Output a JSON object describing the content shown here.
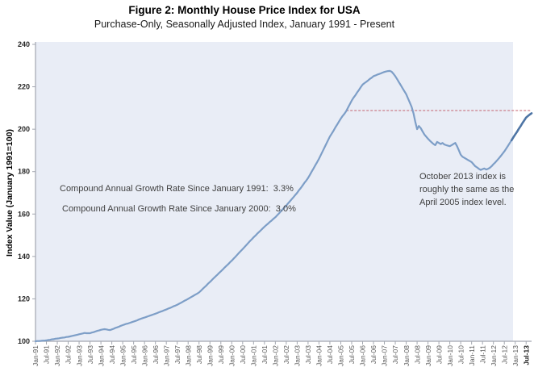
{
  "figure": {
    "title": "Figure 2: Monthly House Price Index for USA",
    "subtitle": "Purchase-Only, Seasonally Adjusted Index, January 1991 - Present"
  },
  "annotations": {
    "cagr_1991": "Compound Annual Growth Rate Since January 1991:  3.3%",
    "cagr_2000": "Compound Annual Growth Rate Since January 2000:  3.0%",
    "note_right": "October 2013 index is\nroughly the same as the\nApril 2005 index level."
  },
  "chart_data": {
    "type": "line",
    "title": "Figure 2: Monthly House Price Index for USA",
    "subtitle": "Purchase-Only, Seasonally Adjusted Index, January 1991 - Present",
    "xlabel": "",
    "ylabel": "Index Value (January 1991=100)",
    "ylim": [
      100,
      240
    ],
    "y_ticks": [
      100,
      120,
      140,
      160,
      180,
      200,
      220,
      240
    ],
    "grid": false,
    "legend": "none",
    "x_tick_labels": [
      "Jan-91",
      "Jul-91",
      "Jan-92",
      "Jul-92",
      "Jan-93",
      "Jul-93",
      "Jan-94",
      "Jul-94",
      "Jan-95",
      "Jul-95",
      "Jan-96",
      "Jul-96",
      "Jan-97",
      "Jul-97",
      "Jan-98",
      "Jul-98",
      "Jan-99",
      "Jul-99",
      "Jan-00",
      "Jul-00",
      "Jan-01",
      "Jul-01",
      "Jan-02",
      "Jul-02",
      "Jan-03",
      "Jul-03",
      "Jan-04",
      "Jul-04",
      "Jan-05",
      "Jul-05",
      "Jan-06",
      "Jul-06",
      "Jan-07",
      "Jul-07",
      "Jan-08",
      "Jul-08",
      "Jan-09",
      "Jul-09",
      "Jan-10",
      "Jul-10",
      "Jan-11",
      "Jul-11",
      "Jan-12",
      "Jul-12",
      "Jan-13",
      "Jul-13"
    ],
    "reference_line": {
      "value": 208.8,
      "style": "dashed",
      "starts_at": "Apr-2005",
      "start_index": 171
    },
    "recent_segment_start_index": 262,
    "series": [
      {
        "name": "Monthly House Price Index (Jan 1991 = 100)",
        "start": "Jan-1991",
        "end": "Oct-2013",
        "frequency": "monthly",
        "values": [
          100.0,
          100.1,
          100.1,
          100.2,
          100.3,
          100.3,
          100.4,
          100.6,
          100.7,
          100.9,
          101.0,
          101.2,
          101.3,
          101.4,
          101.6,
          101.7,
          101.8,
          102.0,
          102.1,
          102.3,
          102.5,
          102.7,
          102.9,
          103.1,
          103.3,
          103.5,
          103.7,
          103.9,
          103.8,
          103.8,
          103.8,
          104.1,
          104.3,
          104.6,
          104.9,
          105.1,
          105.4,
          105.6,
          105.7,
          105.6,
          105.4,
          105.3,
          105.6,
          105.9,
          106.3,
          106.6,
          106.9,
          107.3,
          107.6,
          107.9,
          108.2,
          108.4,
          108.7,
          109.0,
          109.3,
          109.6,
          109.9,
          110.3,
          110.6,
          110.9,
          111.2,
          111.5,
          111.8,
          112.1,
          112.4,
          112.7,
          113.0,
          113.3,
          113.7,
          114.0,
          114.3,
          114.7,
          115.0,
          115.4,
          115.7,
          116.1,
          116.5,
          116.8,
          117.2,
          117.7,
          118.1,
          118.6,
          119.1,
          119.5,
          120.0,
          120.5,
          121.0,
          121.5,
          122.0,
          122.5,
          123.0,
          123.8,
          124.7,
          125.5,
          126.3,
          127.2,
          128.0,
          128.8,
          129.7,
          130.5,
          131.3,
          132.2,
          133.0,
          133.8,
          134.7,
          135.5,
          136.3,
          137.2,
          138.0,
          138.9,
          139.8,
          140.8,
          141.7,
          142.6,
          143.5,
          144.4,
          145.3,
          146.3,
          147.2,
          148.1,
          149.0,
          149.8,
          150.7,
          151.5,
          152.3,
          153.2,
          154.0,
          154.8,
          155.5,
          156.3,
          157.0,
          157.8,
          158.5,
          159.4,
          160.3,
          161.3,
          162.2,
          163.1,
          164.0,
          165.0,
          166.0,
          167.0,
          168.0,
          169.0,
          170.0,
          171.2,
          172.3,
          173.5,
          174.7,
          175.8,
          177.0,
          178.5,
          180.0,
          181.5,
          183.0,
          184.5,
          186.0,
          187.8,
          189.5,
          191.3,
          193.0,
          194.8,
          196.5,
          197.9,
          199.3,
          200.8,
          202.2,
          203.6,
          205.0,
          206.2,
          207.3,
          208.5,
          210.2,
          211.8,
          213.5,
          214.8,
          216.0,
          217.3,
          218.5,
          219.8,
          221.0,
          221.7,
          222.3,
          223.0,
          223.7,
          224.3,
          225.0,
          225.3,
          225.7,
          226.0,
          226.3,
          226.7,
          227.0,
          227.2,
          227.4,
          227.5,
          227.1,
          226.1,
          225.0,
          223.6,
          222.2,
          220.8,
          219.3,
          217.9,
          216.5,
          214.5,
          212.5,
          210.5,
          207.5,
          203.5,
          200.0,
          201.5,
          200.5,
          199.0,
          197.5,
          196.5,
          195.5,
          194.6,
          193.8,
          193.0,
          192.5,
          194.0,
          193.5,
          193.0,
          193.5,
          192.8,
          192.5,
          192.2,
          192.0,
          192.5,
          193.0,
          193.5,
          192.0,
          190.0,
          188.0,
          187.0,
          186.5,
          186.0,
          185.5,
          185.0,
          184.5,
          183.5,
          182.5,
          182.0,
          181.3,
          180.8,
          181.2,
          181.5,
          181.0,
          181.3,
          181.8,
          182.5,
          183.5,
          184.3,
          185.3,
          186.3,
          187.3,
          188.4,
          189.5,
          190.8,
          192.1,
          193.5,
          194.8,
          196.2,
          197.5,
          198.8,
          200.2,
          201.5,
          202.9,
          204.2,
          205.5,
          206.2,
          206.9,
          207.5
        ]
      }
    ],
    "colors": {
      "line": "#7d9ec7",
      "line_recent": "#4e75a5",
      "plot_bg": "#e9edf6",
      "reference_line": "#c4626e",
      "axis": "#a3a7b0"
    }
  }
}
